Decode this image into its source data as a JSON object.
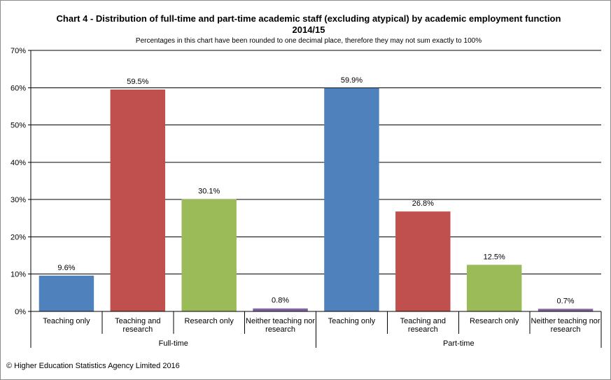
{
  "chart_data": {
    "type": "bar",
    "title": "Chart 4 - Distribution  of full-time and part-time academic staff (excluding atypical) by academic employment function 2014/15",
    "subtitle": "Percentages in this chart have been rounded to one decimal place, therefore they may not sum exactly to 100%",
    "ylim": [
      0,
      70
    ],
    "yticks": [
      "0%",
      "10%",
      "20%",
      "30%",
      "40%",
      "50%",
      "60%",
      "70%"
    ],
    "ytick_values": [
      0,
      10,
      20,
      30,
      40,
      50,
      60,
      70
    ],
    "grid": true,
    "groups": [
      {
        "name": "Full-time",
        "bars": [
          {
            "category": "Teaching only",
            "value": 9.6,
            "label": "9.6%",
            "color": "#4f81bd"
          },
          {
            "category": "Teaching and research",
            "value": 59.5,
            "label": "59.5%",
            "color": "#c0504d"
          },
          {
            "category": "Research only",
            "value": 30.1,
            "label": "30.1%",
            "color": "#9bbb59"
          },
          {
            "category": "Neither teaching nor research",
            "value": 0.8,
            "label": "0.8%",
            "color": "#8064a2"
          }
        ]
      },
      {
        "name": "Part-time",
        "bars": [
          {
            "category": "Teaching only",
            "value": 59.9,
            "label": "59.9%",
            "color": "#4f81bd"
          },
          {
            "category": "Teaching and research",
            "value": 26.8,
            "label": "26.8%",
            "color": "#c0504d"
          },
          {
            "category": "Research only",
            "value": 12.5,
            "label": "12.5%",
            "color": "#9bbb59"
          },
          {
            "category": "Neither teaching nor research",
            "value": 0.7,
            "label": "0.7%",
            "color": "#8064a2"
          }
        ]
      }
    ]
  },
  "footer": {
    "copyright": "© Higher Education Statistics Agency Limited 2016"
  }
}
